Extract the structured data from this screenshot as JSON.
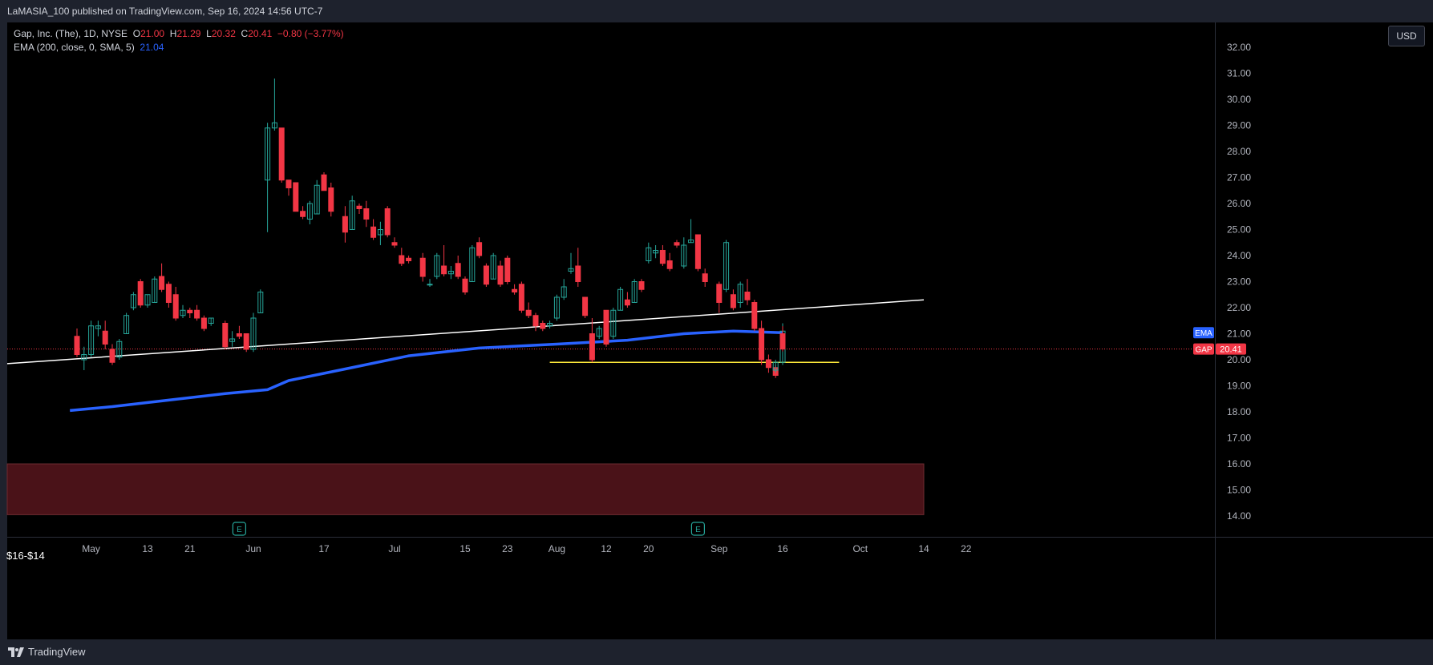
{
  "header": {
    "published": "LaMASIA_100 published on TradingView.com, Sep 16, 2024 14:56 UTC-7"
  },
  "legend": {
    "symbol": "Gap, Inc. (The), 1D, NYSE",
    "o_label": "O",
    "o_value": "21.00",
    "h_label": "H",
    "h_value": "21.29",
    "l_label": "L",
    "l_value": "20.32",
    "c_label": "C",
    "c_value": "20.41",
    "change": "−0.80 (−3.77%)",
    "ema_label": "EMA (200, close, 0, SMA, 5)",
    "ema_value": "21.04"
  },
  "currency_button": "USD",
  "footer": {
    "brand": "TradingView"
  },
  "zone_label": "$16-$14",
  "colors": {
    "up": "#26a69a",
    "down": "#f23645",
    "ema": "#2962ff",
    "support": "#ffeb3b",
    "trendline": "#ffffff",
    "zone_fill": "#4a1218",
    "zone_border": "#6d2b30",
    "badge_gap": "#f23645",
    "badge_ema": "#2962ff"
  },
  "chart_data": {
    "type": "candlestick",
    "symbol": "GAP",
    "interval": "1D",
    "ylim": [
      13.5,
      32.5
    ],
    "y_ticks": [
      14,
      15,
      16,
      17,
      18,
      19,
      20,
      21,
      22,
      23,
      24,
      25,
      26,
      27,
      28,
      29,
      30,
      31,
      32
    ],
    "x_ticks": [
      {
        "label": "May",
        "date": "2024-05-01"
      },
      {
        "label": "13",
        "date": "2024-05-13"
      },
      {
        "label": "21",
        "date": "2024-05-21"
      },
      {
        "label": "Jun",
        "date": "2024-06-03"
      },
      {
        "label": "17",
        "date": "2024-06-17"
      },
      {
        "label": "Jul",
        "date": "2024-07-01"
      },
      {
        "label": "15",
        "date": "2024-07-15"
      },
      {
        "label": "23",
        "date": "2024-07-23"
      },
      {
        "label": "Aug",
        "date": "2024-08-01"
      },
      {
        "label": "12",
        "date": "2024-08-12"
      },
      {
        "label": "20",
        "date": "2024-08-20"
      },
      {
        "label": "Sep",
        "date": "2024-09-03"
      },
      {
        "label": "16",
        "date": "2024-09-16"
      },
      {
        "label": "Oct",
        "date": "2024-10-01"
      },
      {
        "label": "14",
        "date": "2024-10-14"
      },
      {
        "label": "22",
        "date": "2024-10-22"
      }
    ],
    "candles": [
      {
        "date": "2024-04-29",
        "o": 20.9,
        "h": 21.2,
        "l": 20.1,
        "c": 20.2
      },
      {
        "date": "2024-04-30",
        "o": 20.0,
        "h": 20.5,
        "l": 19.6,
        "c": 20.2
      },
      {
        "date": "2024-05-01",
        "o": 20.2,
        "h": 21.5,
        "l": 20.1,
        "c": 21.3
      },
      {
        "date": "2024-05-02",
        "o": 21.2,
        "h": 21.5,
        "l": 20.9,
        "c": 21.3
      },
      {
        "date": "2024-05-03",
        "o": 21.1,
        "h": 21.5,
        "l": 20.4,
        "c": 20.6
      },
      {
        "date": "2024-05-06",
        "o": 20.4,
        "h": 20.6,
        "l": 19.8,
        "c": 19.9
      },
      {
        "date": "2024-05-07",
        "o": 20.1,
        "h": 20.8,
        "l": 20.0,
        "c": 20.7
      },
      {
        "date": "2024-05-08",
        "o": 21.0,
        "h": 21.8,
        "l": 21.0,
        "c": 21.7
      },
      {
        "date": "2024-05-09",
        "o": 22.0,
        "h": 22.6,
        "l": 21.9,
        "c": 22.5
      },
      {
        "date": "2024-05-10",
        "o": 23.0,
        "h": 23.1,
        "l": 22.0,
        "c": 22.1
      },
      {
        "date": "2024-05-13",
        "o": 22.1,
        "h": 22.5,
        "l": 22.0,
        "c": 22.5
      },
      {
        "date": "2024-05-14",
        "o": 22.2,
        "h": 23.2,
        "l": 22.2,
        "c": 23.1
      },
      {
        "date": "2024-05-15",
        "o": 23.2,
        "h": 23.7,
        "l": 22.6,
        "c": 22.7
      },
      {
        "date": "2024-05-16",
        "o": 22.9,
        "h": 23.0,
        "l": 22.0,
        "c": 22.2
      },
      {
        "date": "2024-05-17",
        "o": 22.5,
        "h": 22.8,
        "l": 21.5,
        "c": 21.6
      },
      {
        "date": "2024-05-20",
        "o": 21.7,
        "h": 22.1,
        "l": 21.6,
        "c": 21.9
      },
      {
        "date": "2024-05-21",
        "o": 21.9,
        "h": 22.0,
        "l": 21.6,
        "c": 21.8
      },
      {
        "date": "2024-05-22",
        "o": 21.9,
        "h": 22.1,
        "l": 21.5,
        "c": 21.6
      },
      {
        "date": "2024-05-23",
        "o": 21.6,
        "h": 21.7,
        "l": 21.1,
        "c": 21.2
      },
      {
        "date": "2024-05-24",
        "o": 21.4,
        "h": 21.6,
        "l": 21.3,
        "c": 21.6
      },
      {
        "date": "2024-05-28",
        "o": 21.4,
        "h": 21.5,
        "l": 20.4,
        "c": 20.5
      },
      {
        "date": "2024-05-29",
        "o": 20.7,
        "h": 21.1,
        "l": 20.5,
        "c": 20.8
      },
      {
        "date": "2024-05-30",
        "o": 21.0,
        "h": 21.3,
        "l": 20.8,
        "c": 20.9
      },
      {
        "date": "2024-05-31",
        "o": 21.0,
        "h": 21.0,
        "l": 20.3,
        "c": 20.4
      },
      {
        "date": "2024-06-03",
        "o": 20.4,
        "h": 21.8,
        "l": 20.3,
        "c": 21.6
      },
      {
        "date": "2024-06-04",
        "o": 21.8,
        "h": 22.7,
        "l": 21.8,
        "c": 22.6
      },
      {
        "date": "2024-06-05",
        "o": 26.9,
        "h": 29.1,
        "l": 24.9,
        "c": 28.9
      },
      {
        "date": "2024-06-06",
        "o": 28.9,
        "h": 30.8,
        "l": 28.8,
        "c": 29.1
      },
      {
        "date": "2024-06-07",
        "o": 28.9,
        "h": 28.9,
        "l": 26.8,
        "c": 26.9
      },
      {
        "date": "2024-06-10",
        "o": 26.9,
        "h": 26.9,
        "l": 26.3,
        "c": 26.6
      },
      {
        "date": "2024-06-11",
        "o": 26.8,
        "h": 26.8,
        "l": 25.7,
        "c": 25.7
      },
      {
        "date": "2024-06-12",
        "o": 25.7,
        "h": 25.9,
        "l": 25.4,
        "c": 25.5
      },
      {
        "date": "2024-06-13",
        "o": 25.4,
        "h": 26.1,
        "l": 25.2,
        "c": 26.0
      },
      {
        "date": "2024-06-14",
        "o": 25.6,
        "h": 26.9,
        "l": 25.6,
        "c": 26.7
      },
      {
        "date": "2024-06-17",
        "o": 27.1,
        "h": 27.2,
        "l": 26.5,
        "c": 26.5
      },
      {
        "date": "2024-06-18",
        "o": 26.6,
        "h": 26.8,
        "l": 25.5,
        "c": 25.7
      },
      {
        "date": "2024-06-20",
        "o": 25.5,
        "h": 25.9,
        "l": 24.5,
        "c": 24.9
      },
      {
        "date": "2024-06-21",
        "o": 25.0,
        "h": 26.3,
        "l": 25.0,
        "c": 26.1
      },
      {
        "date": "2024-06-24",
        "o": 25.9,
        "h": 26.0,
        "l": 25.6,
        "c": 25.8
      },
      {
        "date": "2024-06-25",
        "o": 25.8,
        "h": 26.1,
        "l": 25.1,
        "c": 25.4
      },
      {
        "date": "2024-06-26",
        "o": 25.1,
        "h": 25.4,
        "l": 24.6,
        "c": 24.7
      },
      {
        "date": "2024-06-27",
        "o": 24.8,
        "h": 25.3,
        "l": 24.4,
        "c": 25.0
      },
      {
        "date": "2024-06-28",
        "o": 25.8,
        "h": 25.9,
        "l": 24.7,
        "c": 24.8
      },
      {
        "date": "2024-07-01",
        "o": 24.5,
        "h": 24.7,
        "l": 24.3,
        "c": 24.4
      },
      {
        "date": "2024-07-02",
        "o": 24.0,
        "h": 24.3,
        "l": 23.6,
        "c": 23.7
      },
      {
        "date": "2024-07-03",
        "o": 23.9,
        "h": 24.0,
        "l": 23.7,
        "c": 23.8
      },
      {
        "date": "2024-07-05",
        "o": 23.9,
        "h": 24.1,
        "l": 23.0,
        "c": 23.2
      },
      {
        "date": "2024-07-08",
        "o": 22.9,
        "h": 23.1,
        "l": 22.8,
        "c": 22.9
      },
      {
        "date": "2024-07-09",
        "o": 23.2,
        "h": 24.1,
        "l": 23.1,
        "c": 24.0
      },
      {
        "date": "2024-07-10",
        "o": 23.6,
        "h": 24.4,
        "l": 23.2,
        "c": 23.3
      },
      {
        "date": "2024-07-11",
        "o": 23.3,
        "h": 23.6,
        "l": 23.1,
        "c": 23.4
      },
      {
        "date": "2024-07-12",
        "o": 23.7,
        "h": 24.0,
        "l": 23.1,
        "c": 23.2
      },
      {
        "date": "2024-07-15",
        "o": 23.1,
        "h": 23.2,
        "l": 22.5,
        "c": 22.6
      },
      {
        "date": "2024-07-16",
        "o": 23.0,
        "h": 24.4,
        "l": 23.0,
        "c": 24.3
      },
      {
        "date": "2024-07-17",
        "o": 24.5,
        "h": 24.7,
        "l": 23.9,
        "c": 24.0
      },
      {
        "date": "2024-07-18",
        "o": 23.6,
        "h": 23.7,
        "l": 22.8,
        "c": 22.9
      },
      {
        "date": "2024-07-19",
        "o": 23.1,
        "h": 24.1,
        "l": 23.1,
        "c": 24.0
      },
      {
        "date": "2024-07-22",
        "o": 23.6,
        "h": 23.8,
        "l": 22.8,
        "c": 22.9
      },
      {
        "date": "2024-07-23",
        "o": 23.9,
        "h": 24.0,
        "l": 22.9,
        "c": 23.0
      },
      {
        "date": "2024-07-24",
        "o": 22.7,
        "h": 22.9,
        "l": 22.5,
        "c": 22.6
      },
      {
        "date": "2024-07-25",
        "o": 22.9,
        "h": 23.0,
        "l": 21.8,
        "c": 21.9
      },
      {
        "date": "2024-07-26",
        "o": 21.9,
        "h": 22.2,
        "l": 21.6,
        "c": 21.7
      },
      {
        "date": "2024-07-29",
        "o": 21.7,
        "h": 21.8,
        "l": 21.1,
        "c": 21.3
      },
      {
        "date": "2024-07-30",
        "o": 21.4,
        "h": 21.5,
        "l": 21.1,
        "c": 21.2
      },
      {
        "date": "2024-07-31",
        "o": 21.3,
        "h": 21.5,
        "l": 21.2,
        "c": 21.4
      },
      {
        "date": "2024-08-01",
        "o": 21.6,
        "h": 22.5,
        "l": 21.5,
        "c": 22.4
      },
      {
        "date": "2024-08-02",
        "o": 22.4,
        "h": 23.1,
        "l": 22.3,
        "c": 22.8
      },
      {
        "date": "2024-08-05",
        "o": 23.4,
        "h": 24.1,
        "l": 23.3,
        "c": 23.5
      },
      {
        "date": "2024-08-06",
        "o": 23.6,
        "h": 24.3,
        "l": 22.8,
        "c": 23.0
      },
      {
        "date": "2024-08-07",
        "o": 22.4,
        "h": 22.4,
        "l": 21.6,
        "c": 21.7
      },
      {
        "date": "2024-08-08",
        "o": 21.0,
        "h": 21.6,
        "l": 19.9,
        "c": 20.0
      },
      {
        "date": "2024-08-09",
        "o": 20.9,
        "h": 21.3,
        "l": 20.8,
        "c": 21.2
      },
      {
        "date": "2024-08-12",
        "o": 21.9,
        "h": 21.9,
        "l": 20.5,
        "c": 20.6
      },
      {
        "date": "2024-08-13",
        "o": 20.9,
        "h": 22.0,
        "l": 20.8,
        "c": 21.9
      },
      {
        "date": "2024-08-14",
        "o": 21.9,
        "h": 22.8,
        "l": 21.9,
        "c": 22.7
      },
      {
        "date": "2024-08-15",
        "o": 22.3,
        "h": 22.6,
        "l": 22.0,
        "c": 22.1
      },
      {
        "date": "2024-08-16",
        "o": 22.2,
        "h": 23.1,
        "l": 22.2,
        "c": 23.0
      },
      {
        "date": "2024-08-19",
        "o": 23.0,
        "h": 23.1,
        "l": 22.6,
        "c": 22.7
      },
      {
        "date": "2024-08-20",
        "o": 23.8,
        "h": 24.5,
        "l": 23.7,
        "c": 24.3
      },
      {
        "date": "2024-08-21",
        "o": 24.1,
        "h": 24.4,
        "l": 23.9,
        "c": 24.2
      },
      {
        "date": "2024-08-22",
        "o": 24.2,
        "h": 24.4,
        "l": 23.6,
        "c": 23.7
      },
      {
        "date": "2024-08-23",
        "o": 23.8,
        "h": 24.1,
        "l": 23.4,
        "c": 23.5
      },
      {
        "date": "2024-08-26",
        "o": 24.5,
        "h": 24.6,
        "l": 24.3,
        "c": 24.4
      },
      {
        "date": "2024-08-27",
        "o": 23.6,
        "h": 24.7,
        "l": 23.5,
        "c": 24.4
      },
      {
        "date": "2024-08-28",
        "o": 24.5,
        "h": 25.4,
        "l": 24.5,
        "c": 24.6
      },
      {
        "date": "2024-08-29",
        "o": 24.8,
        "h": 24.8,
        "l": 23.4,
        "c": 23.5
      },
      {
        "date": "2024-08-30",
        "o": 23.3,
        "h": 23.5,
        "l": 22.8,
        "c": 23.0
      },
      {
        "date": "2024-09-03",
        "o": 22.9,
        "h": 23.0,
        "l": 21.8,
        "c": 22.2
      },
      {
        "date": "2024-09-04",
        "o": 22.7,
        "h": 24.6,
        "l": 22.6,
        "c": 24.5
      },
      {
        "date": "2024-09-05",
        "o": 22.5,
        "h": 22.7,
        "l": 21.9,
        "c": 22.0
      },
      {
        "date": "2024-09-06",
        "o": 22.2,
        "h": 23.0,
        "l": 22.0,
        "c": 22.9
      },
      {
        "date": "2024-09-09",
        "o": 22.6,
        "h": 23.1,
        "l": 22.1,
        "c": 22.3
      },
      {
        "date": "2024-09-10",
        "o": 22.2,
        "h": 22.3,
        "l": 21.1,
        "c": 21.2
      },
      {
        "date": "2024-09-11",
        "o": 21.2,
        "h": 21.5,
        "l": 19.8,
        "c": 20.0
      },
      {
        "date": "2024-09-12",
        "o": 20.0,
        "h": 20.2,
        "l": 19.5,
        "c": 19.7
      },
      {
        "date": "2024-09-13",
        "o": 19.7,
        "h": 19.8,
        "l": 19.3,
        "c": 19.4
      },
      {
        "date": "2024-09-13b",
        "o": 19.6,
        "h": 20.0,
        "l": 19.5,
        "c": 19.9
      },
      {
        "date": "2024-09-16a",
        "o": 19.9,
        "h": 20.8,
        "l": 19.8,
        "c": 20.6
      },
      {
        "date": "2024-09-16b",
        "o": 20.8,
        "h": 21.4,
        "l": 20.7,
        "c": 21.1
      },
      {
        "date": "2024-09-16",
        "o": 21.0,
        "h": 21.29,
        "l": 20.32,
        "c": 20.41
      }
    ],
    "ema200": {
      "label": "EMA (200, close, 0, SMA, 5)",
      "last": 21.04,
      "points": [
        {
          "date": "2024-04-26",
          "v": 18.05
        },
        {
          "date": "2024-05-06",
          "v": 18.2
        },
        {
          "date": "2024-05-16",
          "v": 18.45
        },
        {
          "date": "2024-05-28",
          "v": 18.7
        },
        {
          "date": "2024-06-05",
          "v": 18.85
        },
        {
          "date": "2024-06-10",
          "v": 19.2
        },
        {
          "date": "2024-06-21",
          "v": 19.7
        },
        {
          "date": "2024-07-03",
          "v": 20.15
        },
        {
          "date": "2024-07-17",
          "v": 20.45
        },
        {
          "date": "2024-08-01",
          "v": 20.6
        },
        {
          "date": "2024-08-15",
          "v": 20.75
        },
        {
          "date": "2024-08-27",
          "v": 21.0
        },
        {
          "date": "2024-09-05",
          "v": 21.1
        },
        {
          "date": "2024-09-16",
          "v": 21.04
        }
      ]
    },
    "trendline": {
      "start": {
        "date": "2024-04-26",
        "v": 19.85
      },
      "end": {
        "date": "2024-10-14",
        "v": 22.3
      }
    },
    "support_line": {
      "start": {
        "date": "2024-07-31",
        "v": 19.9
      },
      "end": {
        "date": "2024-09-26",
        "v": 19.9
      }
    },
    "zone": {
      "label": "$16-$14",
      "top": 16.0,
      "bottom": 14.05,
      "end_date": "2024-10-14"
    },
    "last_price": 20.41,
    "badges": [
      {
        "text": "EMA",
        "value": 21.04
      },
      {
        "text": "GAP",
        "value": "20.41"
      }
    ],
    "event_markers": [
      {
        "date": "2024-05-30",
        "text": "E"
      },
      {
        "date": "2024-08-29",
        "text": "E"
      }
    ]
  }
}
